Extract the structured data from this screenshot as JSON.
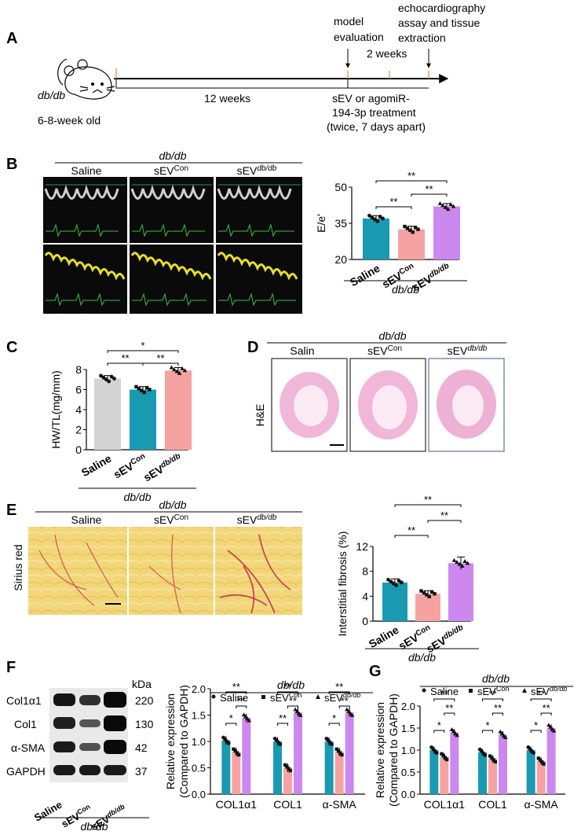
{
  "panels": {
    "A": {
      "letter": "A",
      "mouse_label": "db/db",
      "age_label": "6-8-week old",
      "duration_label": "12 weeks",
      "model_eval": [
        "model",
        "evaluation"
      ],
      "echo_label": [
        "echocardiography",
        "assay and tissue",
        "extraction"
      ],
      "two_weeks": "2 weeks",
      "treatment": [
        "sEV or agomiR-",
        "194-3p treatment",
        "(twice, 7 days apart)"
      ]
    },
    "B": {
      "letter": "B",
      "group_header": "db/db",
      "col_saline": "Saline",
      "col_con_main": "sEV",
      "col_con_sup": "Con",
      "col_db_main": "sEV",
      "col_db_sup": "db/db"
    },
    "C": {
      "letter": "C"
    },
    "D": {
      "letter": "D",
      "group_header": "db/db",
      "row_label": "H&E",
      "col_saline": "Salin",
      "col_con_main": "sEV",
      "col_con_sup": "Con",
      "col_db_main": "sEV",
      "col_db_sup": "db/db"
    },
    "E": {
      "letter": "E",
      "group_header": "db/db",
      "row_label": "Sirius red",
      "col_saline": "Saline",
      "col_con_main": "sEV",
      "col_con_sup": "Con",
      "col_db_main": "sEV",
      "col_db_sup": "db/db"
    },
    "F": {
      "letter": "F",
      "kda_label": "kDa",
      "blot_rows": [
        {
          "protein": "Col1α1",
          "kda": "220"
        },
        {
          "protein": "Col1",
          "kda": "130"
        },
        {
          "protein": "α-SMA",
          "kda": "42"
        },
        {
          "protein": "GAPDH",
          "kda": "37"
        }
      ],
      "lanes": [
        "Saline",
        "sEV",
        "sEV"
      ],
      "lane_sups": [
        "",
        "Con",
        "db/db"
      ],
      "group_footer": "db/db"
    },
    "G": {
      "letter": "G"
    }
  },
  "colors": {
    "saline_gray": "#d3d3d3",
    "teal": "#1a9ab0",
    "pink": "#f7a2a2",
    "violet": "#cc88ee"
  },
  "chart_data": [
    {
      "id": "B",
      "type": "bar",
      "categories": [
        "Saline",
        "sEV^Con",
        "sEV^db/db"
      ],
      "values": [
        37,
        32.5,
        42
      ],
      "errors": [
        1.2,
        1.3,
        1.2
      ],
      "colors": [
        "#1a9ab0",
        "#f7a2a2",
        "#cc88ee"
      ],
      "ylabel": "E/e'",
      "ylim": [
        20,
        50
      ],
      "yticks": [
        20,
        35,
        50
      ],
      "group_label": "db/db",
      "significance": [
        "**",
        "**",
        "**"
      ]
    },
    {
      "id": "C",
      "type": "bar",
      "categories": [
        "Saline",
        "sEV^Con",
        "sEV^db/db"
      ],
      "values": [
        7.1,
        6.0,
        7.9
      ],
      "errors": [
        0.3,
        0.3,
        0.3
      ],
      "colors": [
        "#d3d3d3",
        "#1a9ab0",
        "#f7a2a2"
      ],
      "ylabel": "HW/TL(mg/mm)",
      "ylim": [
        0,
        8
      ],
      "yticks": [
        0,
        2,
        4,
        6,
        8
      ],
      "group_label": "db/db",
      "significance": [
        "*",
        "**",
        "**"
      ]
    },
    {
      "id": "E",
      "type": "bar",
      "categories": [
        "Saline",
        "sEV^Con",
        "sEV^db/db"
      ],
      "values": [
        6.2,
        4.4,
        9.3
      ],
      "errors": [
        0.6,
        0.5,
        1.0
      ],
      "colors": [
        "#1a9ab0",
        "#f7a2a2",
        "#cc88ee"
      ],
      "ylabel": "Interstitial fibrosis (%)",
      "ylim": [
        0,
        12
      ],
      "yticks": [
        0,
        4,
        8,
        12
      ],
      "group_label": "db/db",
      "significance": [
        "**",
        "**",
        "**"
      ]
    },
    {
      "id": "F",
      "type": "bar",
      "categories": [
        "COL1α1",
        "COL1",
        "α-SMA"
      ],
      "series": [
        {
          "name": "Saline",
          "values": [
            1.02,
            1.0,
            1.0
          ]
        },
        {
          "name": "sEV^Con",
          "values": [
            0.8,
            0.5,
            0.8
          ]
        },
        {
          "name": "sEV^db/db",
          "values": [
            1.45,
            1.55,
            1.55
          ]
        }
      ],
      "colors": [
        "#1a9ab0",
        "#f7a2a2",
        "#cc88ee"
      ],
      "ylabel": [
        "Relative expression",
        "(Compared to GAPDH)"
      ],
      "ylim": [
        0,
        2.0
      ],
      "yticks": [
        0,
        0.5,
        1.0,
        1.5,
        2.0
      ],
      "group_label": "db/db",
      "significance": [
        [
          "*",
          "**",
          "**"
        ],
        [
          "**",
          "**",
          "**"
        ],
        [
          "*",
          "**",
          "**"
        ]
      ]
    },
    {
      "id": "G",
      "type": "bar",
      "categories": [
        "COL1α1",
        "COL1",
        "α-SMA"
      ],
      "series": [
        {
          "name": "Saline",
          "values": [
            1.0,
            0.95,
            1.0
          ]
        },
        {
          "name": "sEV^Con",
          "values": [
            0.85,
            0.8,
            0.75
          ]
        },
        {
          "name": "sEV^db/db",
          "values": [
            1.4,
            1.35,
            1.5
          ]
        }
      ],
      "colors": [
        "#1a9ab0",
        "#f7a2a2",
        "#cc88ee"
      ],
      "ylabel": [
        "Relative expression",
        "(Compared to GAPDH)"
      ],
      "ylim": [
        0,
        2.0
      ],
      "yticks": [
        0,
        0.5,
        1.0,
        1.5,
        2.0
      ],
      "group_label": "db/db",
      "significance": [
        [
          "*",
          "**",
          "**"
        ],
        [
          "*",
          "**",
          "**"
        ],
        [
          "*",
          "**",
          "**"
        ]
      ]
    }
  ]
}
